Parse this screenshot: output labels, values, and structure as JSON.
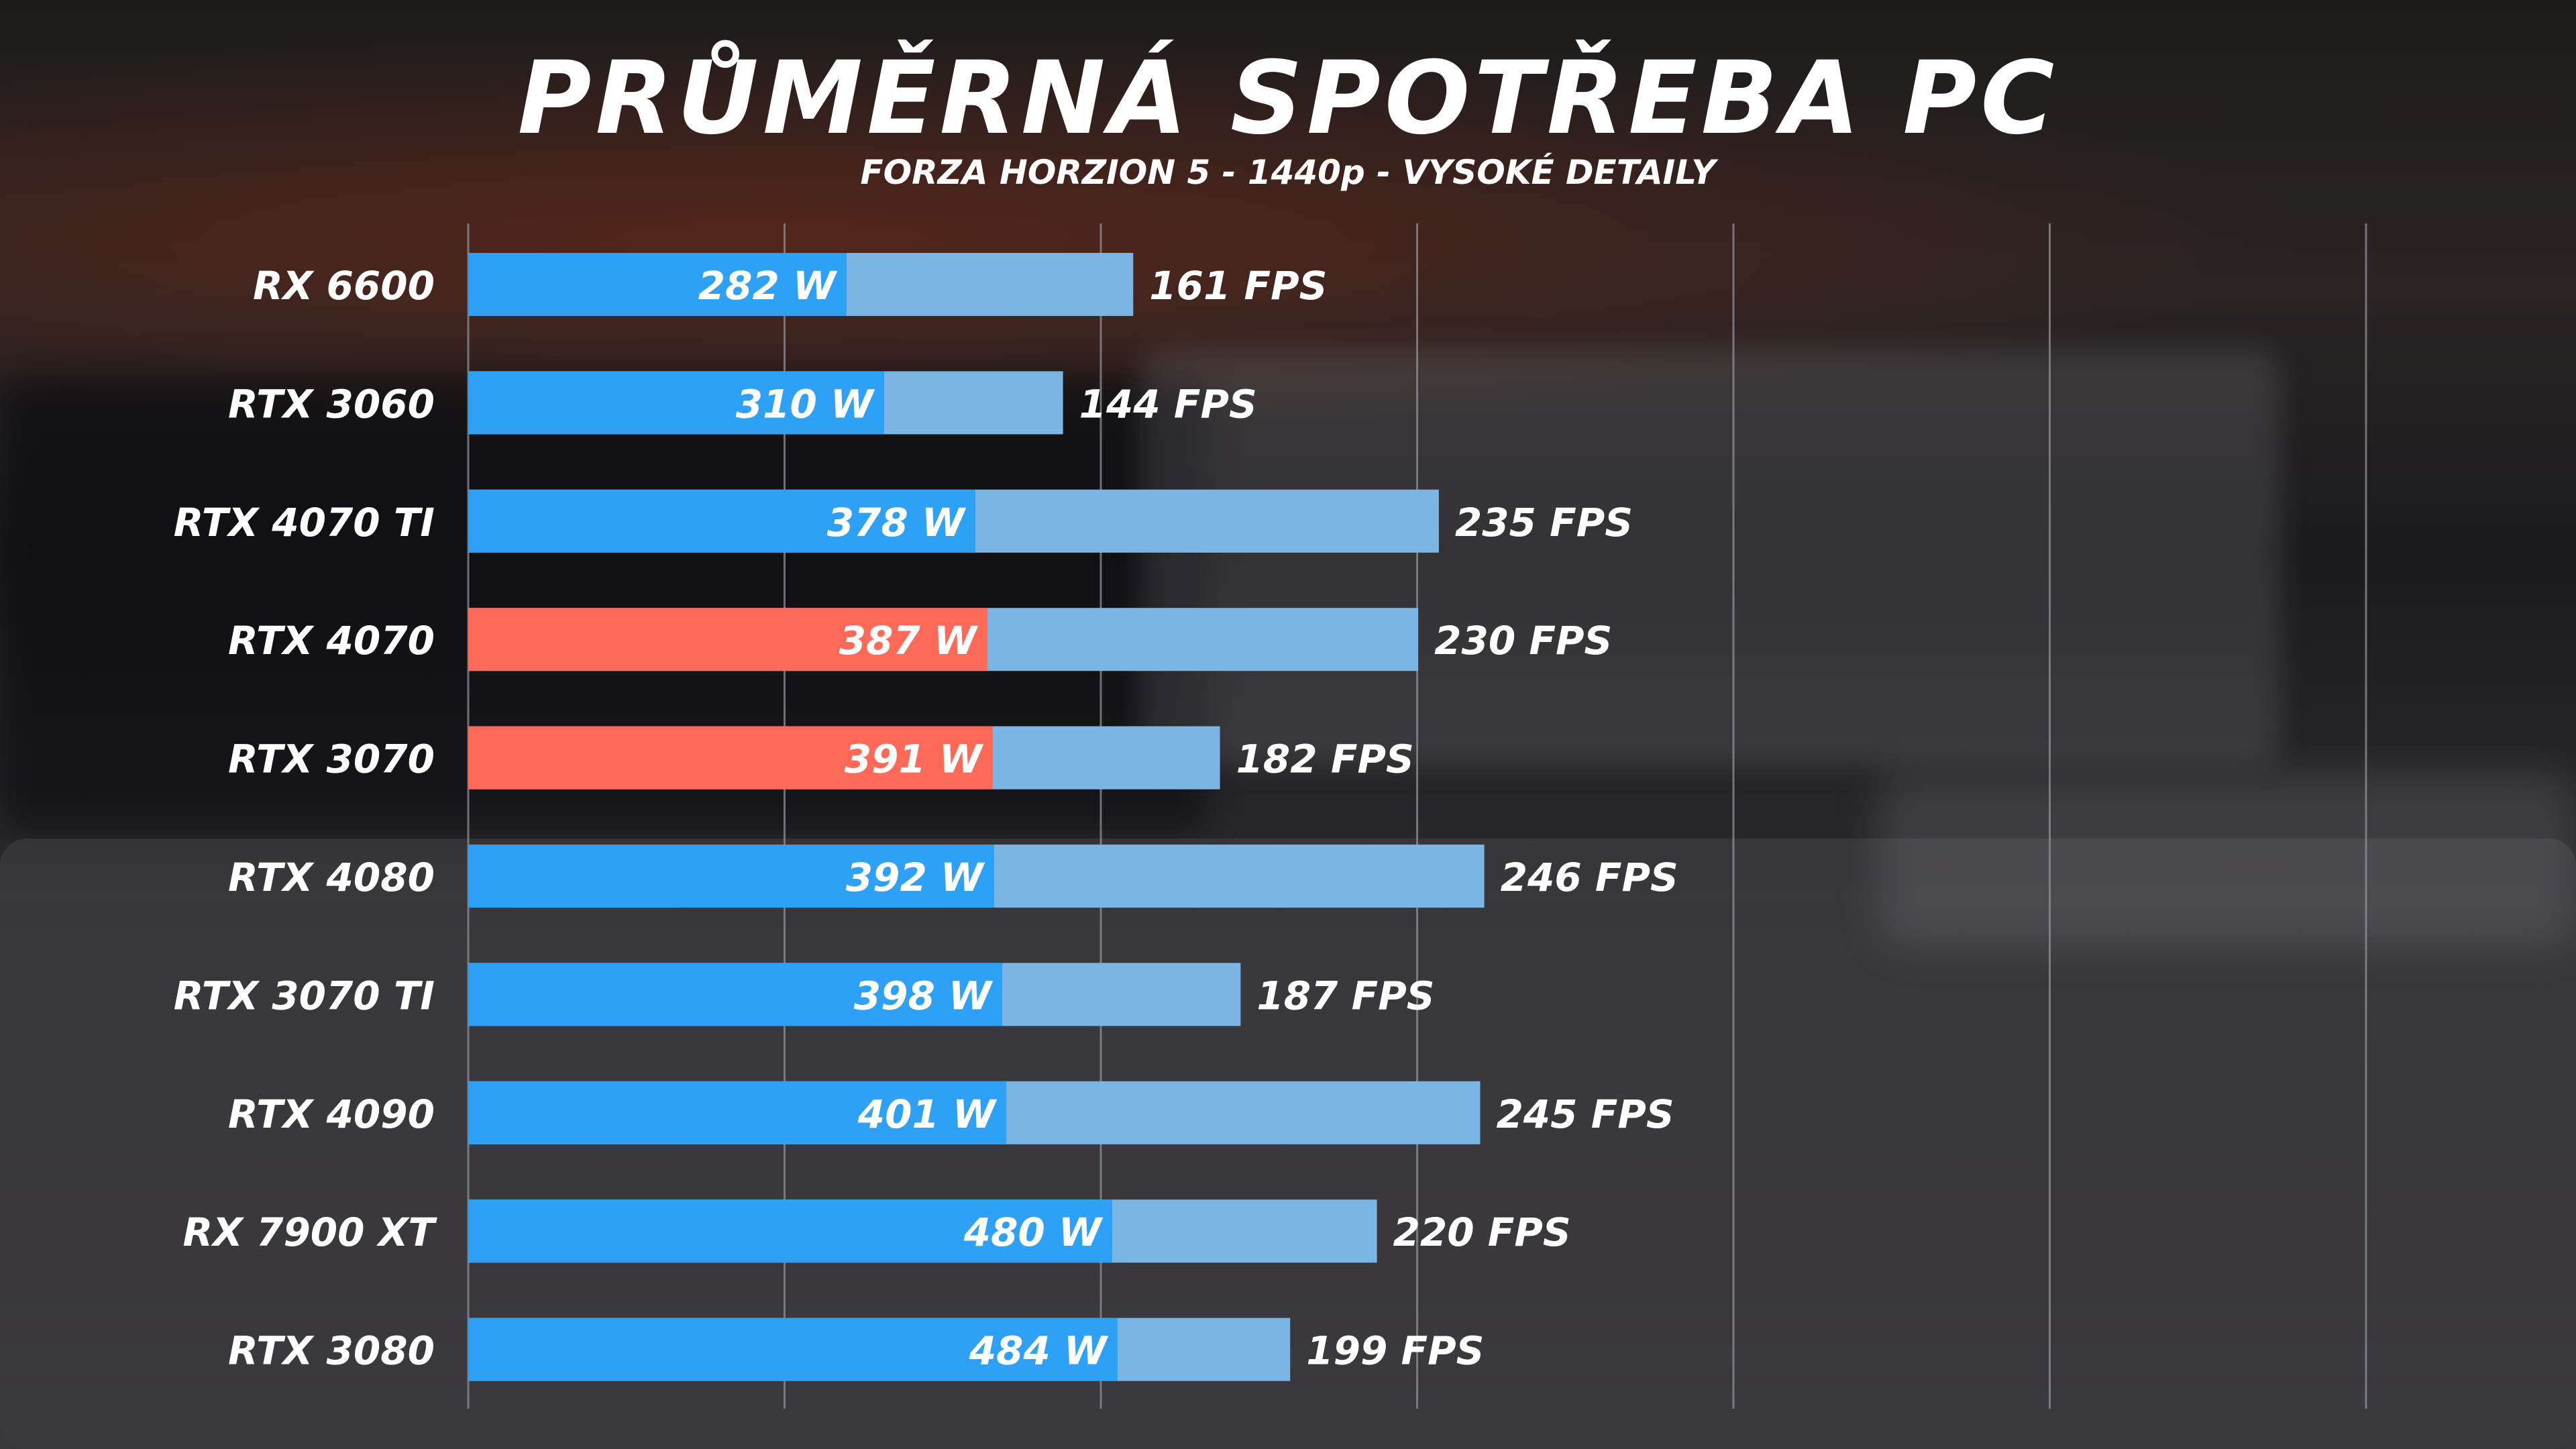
{
  "chart_data": {
    "type": "bar",
    "orientation": "horizontal",
    "title": "PRŮMĚRNÁ SPOTŘEBA PC",
    "subtitle": "FORZA HORZION 5 - 1440p - VYSOKÉ DETAILY",
    "grid": true,
    "categories": [
      "RX 6600",
      "RTX 3060",
      "RTX 4070 TI",
      "RTX 4070",
      "RTX 3070",
      "RTX 4080",
      "RTX 3070 TI",
      "RTX 4090",
      "RX 7900 XT",
      "RTX 3080"
    ],
    "series": [
      {
        "unit": "W",
        "values": [
          282,
          310,
          378,
          387,
          391,
          392,
          398,
          401,
          480,
          484
        ],
        "labels": [
          "282 W",
          "310 W",
          "378 W",
          "387 W",
          "391 W",
          "392 W",
          "398 W",
          "401 W",
          "480 W",
          "484 W"
        ]
      },
      {
        "unit": "FPS",
        "values": [
          161,
          144,
          235,
          230,
          182,
          246,
          187,
          245,
          220,
          199
        ],
        "labels": [
          "161 FPS",
          "144 FPS",
          "235 FPS",
          "230 FPS",
          "182 FPS",
          "246 FPS",
          "187 FPS",
          "245 FPS",
          "220 FPS",
          "199 FPS"
        ]
      }
    ],
    "highlighted": [
      "RTX 4070",
      "RTX 3070"
    ],
    "colors": {
      "watts": "#2ea1f7",
      "watts_highlight": "#ff6a58",
      "fps": "#7bb5e3",
      "grid": "#8f8f95"
    }
  }
}
